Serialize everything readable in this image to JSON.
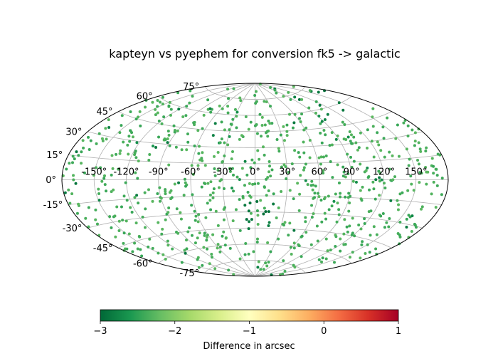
{
  "chart_data": {
    "type": "scatter",
    "projection": "aitoff",
    "title": "kapteyn vs pyephem for conversion fk5 -> galactic",
    "xlabel": "",
    "ylabel": "",
    "grid": true,
    "lon_tick_labels": [
      "-150°",
      "-120°",
      "-90°",
      "-60°",
      "-30°",
      "0°",
      "30°",
      "60°",
      "90°",
      "120°",
      "150°"
    ],
    "lon_ticks": [
      -150,
      -120,
      -90,
      -60,
      -30,
      0,
      30,
      60,
      90,
      120,
      150
    ],
    "lat_tick_labels": [
      "-75°",
      "-60°",
      "-45°",
      "-30°",
      "-15°",
      "0°",
      "15°",
      "30°",
      "45°",
      "60°",
      "75°"
    ],
    "lat_ticks": [
      -75,
      -60,
      -45,
      -30,
      -15,
      0,
      15,
      30,
      45,
      60,
      75
    ],
    "colorbar": {
      "label": "Difference in arcsec",
      "range": [
        -3,
        1
      ],
      "ticks": [
        -3,
        -2,
        -1,
        0,
        1
      ],
      "tick_labels": [
        "−3",
        "−2",
        "−1",
        "0",
        "1"
      ],
      "colormap": "RdYlGn_r",
      "stops": [
        "#006837",
        "#1a9850",
        "#66bd63",
        "#a6d96a",
        "#d9ef8b",
        "#ffffbf",
        "#fee08b",
        "#fdae61",
        "#f46d43",
        "#d73027",
        "#a50026"
      ]
    },
    "point_count": 800,
    "points_note": "≈800 random sky positions; most differences near -2.3 arcsec, darker green (≈-3) clustered near lon 0°, lat -30° and lon 120–150°, lat 60–75°"
  }
}
